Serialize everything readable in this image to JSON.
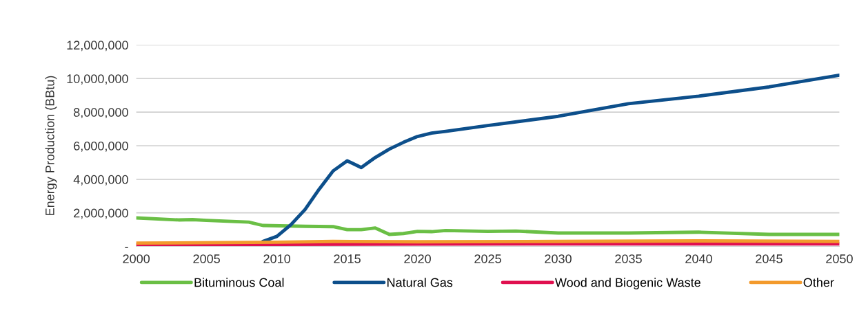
{
  "chart_data": {
    "type": "line",
    "ylabel": "Energy Production (BBtu)",
    "xlim": [
      2000,
      2050
    ],
    "xticks": [
      2000,
      2005,
      2010,
      2015,
      2020,
      2025,
      2030,
      2035,
      2040,
      2045,
      2050
    ],
    "ylim": [
      0,
      12000000
    ],
    "yticks": [
      {
        "value": 0,
        "label": "-"
      },
      {
        "value": 2000000,
        "label": "2,000,000"
      },
      {
        "value": 4000000,
        "label": "4,000,000"
      },
      {
        "value": 6000000,
        "label": "6,000,000"
      },
      {
        "value": 8000000,
        "label": "8,000,000"
      },
      {
        "value": 10000000,
        "label": "10,000,000"
      },
      {
        "value": 12000000,
        "label": "12,000,000"
      }
    ],
    "grid": "y",
    "legend": "bottom",
    "marker": "none",
    "line_style": "solid",
    "series": [
      {
        "name": "Bituminous Coal",
        "color": "#6abf45",
        "x": [
          2000,
          2003,
          2004,
          2005,
          2008,
          2009,
          2012,
          2014,
          2015,
          2016,
          2017,
          2018,
          2019,
          2020,
          2021,
          2022,
          2025,
          2027,
          2030,
          2035,
          2040,
          2045,
          2050
        ],
        "values": [
          1700000,
          1580000,
          1600000,
          1550000,
          1450000,
          1250000,
          1200000,
          1180000,
          1000000,
          1000000,
          1100000,
          720000,
          770000,
          900000,
          880000,
          950000,
          900000,
          920000,
          800000,
          800000,
          850000,
          720000,
          720000
        ]
      },
      {
        "name": "Natural Gas",
        "color": "#0d4f8b",
        "x": [
          2009,
          2010,
          2011,
          2012,
          2013,
          2014,
          2015,
          2016,
          2017,
          2018,
          2019,
          2020,
          2021,
          2022,
          2025,
          2030,
          2035,
          2040,
          2045,
          2050
        ],
        "values": [
          300000,
          600000,
          1300000,
          2200000,
          3400000,
          4500000,
          5100000,
          4700000,
          5300000,
          5800000,
          6200000,
          6550000,
          6750000,
          6850000,
          7200000,
          7750000,
          8500000,
          8950000,
          9500000,
          10200000
        ]
      },
      {
        "name": "Wood and Biogenic Waste",
        "color": "#e0104f",
        "x": [
          2000,
          2010,
          2020,
          2030,
          2040,
          2050
        ],
        "values": [
          100000,
          120000,
          140000,
          150000,
          150000,
          150000
        ]
      },
      {
        "name": "Other",
        "color": "#f39a2c",
        "x": [
          2000,
          2010,
          2014,
          2020,
          2030,
          2040,
          2050
        ],
        "values": [
          200000,
          250000,
          300000,
          280000,
          300000,
          330000,
          300000
        ]
      }
    ]
  }
}
